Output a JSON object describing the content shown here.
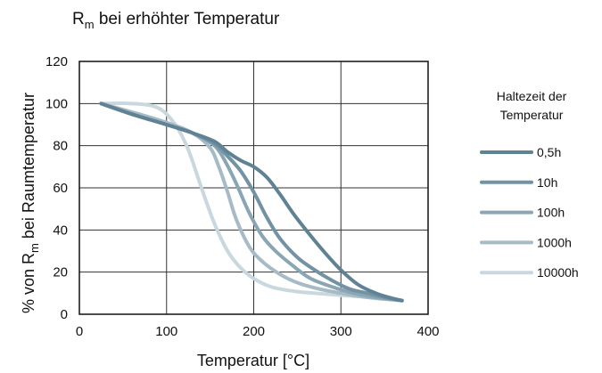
{
  "chart_data": {
    "type": "line",
    "title": "R",
    "title_subscript": "m",
    "title_rest": " bei erhöhter Temperatur",
    "xlabel": "Temperatur [°C]",
    "ylabel_part1": "% von R",
    "ylabel_subscript": "m",
    "ylabel_part2": " bei Raumtemperatur",
    "xlim": [
      0,
      400
    ],
    "ylim": [
      0,
      120
    ],
    "xticks": [
      0,
      100,
      200,
      300,
      400
    ],
    "yticks": [
      0,
      20,
      40,
      60,
      80,
      100,
      120
    ],
    "grid": true,
    "legend_position": "right",
    "legend_title_line1": "Haltezeit der",
    "legend_title_line2": "Temperatur",
    "series": [
      {
        "name": "0,5h",
        "color": "#5f8294",
        "x": [
          25,
          60,
          100,
          130,
          155,
          170,
          185,
          200,
          215,
          230,
          245,
          260,
          280,
          300,
          320,
          340,
          355,
          370
        ],
        "y": [
          100,
          95,
          90,
          86,
          82,
          77,
          73,
          70,
          65,
          57,
          48,
          40,
          30,
          21,
          14,
          10,
          8,
          6.5
        ]
      },
      {
        "name": "10h",
        "color": "#7392a3",
        "x": [
          25,
          60,
          100,
          130,
          155,
          170,
          185,
          200,
          215,
          230,
          250,
          270,
          290,
          310,
          330,
          350,
          370
        ],
        "y": [
          100,
          95,
          90,
          86,
          81,
          75,
          68,
          58,
          46,
          36,
          27,
          21,
          16,
          12,
          10,
          8,
          6.5
        ]
      },
      {
        "name": "100h",
        "color": "#8aa6b4",
        "x": [
          25,
          60,
          100,
          130,
          155,
          168,
          180,
          195,
          210,
          225,
          245,
          265,
          290,
          315,
          340,
          370
        ],
        "y": [
          100,
          95,
          90,
          86,
          80,
          72,
          62,
          48,
          37,
          30,
          23,
          17,
          13,
          10,
          8,
          6.5
        ]
      },
      {
        "name": "1000h",
        "color": "#a6bbc6",
        "x": [
          25,
          60,
          100,
          130,
          150,
          160,
          170,
          180,
          195,
          210,
          230,
          250,
          275,
          300,
          330,
          370
        ],
        "y": [
          100,
          96,
          91,
          86,
          79,
          70,
          58,
          45,
          32,
          25,
          19,
          15,
          12,
          10,
          8,
          6.5
        ]
      },
      {
        "name": "10000h",
        "color": "#c9d8de",
        "x": [
          25,
          60,
          90,
          110,
          125,
          140,
          155,
          170,
          185,
          200,
          220,
          245,
          270,
          300,
          335,
          370
        ],
        "y": [
          100,
          100,
          98,
          90,
          78,
          60,
          43,
          30,
          22,
          17,
          13,
          11,
          10,
          9,
          8,
          6.5
        ]
      }
    ]
  }
}
